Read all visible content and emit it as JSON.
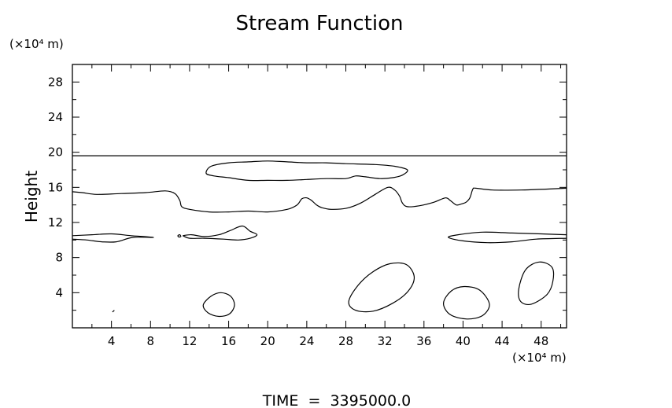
{
  "chart_data": {
    "type": "contour",
    "title": "Stream Function",
    "ylabel": "Height",
    "y_unit": "(×10⁴ m)",
    "x_unit": "(×10⁴ m)",
    "footer": "TIME  =  3395000.0",
    "xlim": [
      0,
      50.6
    ],
    "ylim": [
      0,
      30
    ],
    "x_ticks": [
      4,
      8,
      12,
      16,
      20,
      24,
      28,
      32,
      36,
      40,
      44,
      48
    ],
    "y_ticks": [
      4,
      8,
      12,
      16,
      20,
      24,
      28
    ],
    "x_minor_step": 2,
    "y_minor_step": 2,
    "contours": [
      {
        "name": "top-boundary",
        "closed": false,
        "points": [
          [
            0,
            19.6
          ],
          [
            50.6,
            19.6
          ]
        ]
      },
      {
        "name": "upper-band",
        "closed": false,
        "points": [
          [
            0,
            15.5
          ],
          [
            1,
            15.4
          ],
          [
            2.5,
            15.2
          ],
          [
            5,
            15.3
          ],
          [
            7.5,
            15.4
          ],
          [
            9.5,
            15.6
          ],
          [
            10.5,
            15.3
          ],
          [
            11,
            14.5
          ],
          [
            11.2,
            13.8
          ],
          [
            12,
            13.5
          ],
          [
            14,
            13.2
          ],
          [
            16,
            13.2
          ],
          [
            18,
            13.3
          ],
          [
            20,
            13.2
          ],
          [
            22,
            13.5
          ],
          [
            23,
            14
          ],
          [
            23.5,
            14.7
          ],
          [
            24,
            14.8
          ],
          [
            24.5,
            14.5
          ],
          [
            25,
            14
          ],
          [
            25.5,
            13.7
          ],
          [
            26.5,
            13.5
          ],
          [
            28,
            13.6
          ],
          [
            29.5,
            14.2
          ],
          [
            31,
            15.2
          ],
          [
            32.3,
            16
          ],
          [
            33,
            15.7
          ],
          [
            33.5,
            15
          ],
          [
            33.8,
            14.2
          ],
          [
            34.3,
            13.8
          ],
          [
            35.5,
            13.9
          ],
          [
            37,
            14.3
          ],
          [
            38.2,
            14.8
          ],
          [
            38.7,
            14.5
          ],
          [
            39.3,
            14
          ],
          [
            39.8,
            14.1
          ],
          [
            40.3,
            14.3
          ],
          [
            40.7,
            14.8
          ],
          [
            41,
            15.8
          ],
          [
            41.3,
            15.9
          ],
          [
            43,
            15.7
          ],
          [
            46,
            15.7
          ],
          [
            48.5,
            15.8
          ],
          [
            50.6,
            15.9
          ]
        ]
      },
      {
        "name": "upper-lens",
        "closed": true,
        "points": [
          [
            13.7,
            17.6
          ],
          [
            14.2,
            18.4
          ],
          [
            16,
            18.8
          ],
          [
            18,
            18.9
          ],
          [
            20,
            19.0
          ],
          [
            22,
            18.9
          ],
          [
            24,
            18.8
          ],
          [
            26,
            18.8
          ],
          [
            28,
            18.7
          ],
          [
            31,
            18.6
          ],
          [
            33,
            18.4
          ],
          [
            34.3,
            18.0
          ],
          [
            33.8,
            17.4
          ],
          [
            32.8,
            17.1
          ],
          [
            31.5,
            17.0
          ],
          [
            30,
            17.2
          ],
          [
            29,
            17.3
          ],
          [
            28,
            17.0
          ],
          [
            26,
            17.0
          ],
          [
            24,
            16.9
          ],
          [
            22,
            16.8
          ],
          [
            20,
            16.8
          ],
          [
            18,
            16.8
          ],
          [
            16,
            17.1
          ],
          [
            14.5,
            17.3
          ]
        ]
      },
      {
        "name": "left-tongue",
        "closed": false,
        "points": [
          [
            0,
            10.5
          ],
          [
            2,
            10.6
          ],
          [
            4,
            10.7
          ],
          [
            6,
            10.5
          ],
          [
            8.3,
            10.3
          ],
          [
            6.2,
            10.3
          ],
          [
            4.5,
            9.8
          ],
          [
            3,
            9.8
          ],
          [
            1.5,
            10.0
          ],
          [
            0,
            10.1
          ]
        ]
      },
      {
        "name": "center-blob",
        "closed": false,
        "points": [
          [
            11.3,
            10.5
          ],
          [
            12.2,
            10.6
          ],
          [
            13.5,
            10.4
          ],
          [
            15,
            10.6
          ],
          [
            16.2,
            11.1
          ],
          [
            17.4,
            11.6
          ],
          [
            18.2,
            11.0
          ],
          [
            18.9,
            10.6
          ],
          [
            18.2,
            10.2
          ],
          [
            17,
            10.0
          ],
          [
            15.5,
            10.1
          ],
          [
            13.5,
            10.2
          ],
          [
            12,
            10.2
          ],
          [
            11.3,
            10.5
          ]
        ]
      },
      {
        "name": "center-dot",
        "closed": true,
        "points": [
          [
            10.8,
            10.5
          ],
          [
            11.0,
            10.6
          ],
          [
            11.1,
            10.4
          ],
          [
            10.9,
            10.35
          ]
        ]
      },
      {
        "name": "right-tongue",
        "closed": false,
        "points": [
          [
            50.6,
            10.6
          ],
          [
            48,
            10.7
          ],
          [
            45,
            10.8
          ],
          [
            42,
            10.9
          ],
          [
            39.5,
            10.6
          ],
          [
            38.5,
            10.3
          ],
          [
            40,
            9.9
          ],
          [
            42.5,
            9.7
          ],
          [
            45,
            9.8
          ],
          [
            47.5,
            10.1
          ],
          [
            50.6,
            10.2
          ]
        ]
      },
      {
        "name": "bottom-cell-left",
        "closed": true,
        "points": [
          [
            13.4,
            2.6
          ],
          [
            14.2,
            3.6
          ],
          [
            15.2,
            4.0
          ],
          [
            16.2,
            3.6
          ],
          [
            16.6,
            2.6
          ],
          [
            16.1,
            1.6
          ],
          [
            15,
            1.3
          ],
          [
            13.9,
            1.7
          ]
        ]
      },
      {
        "name": "bottom-cell-middle",
        "closed": true,
        "points": [
          [
            28.3,
            3.0
          ],
          [
            29.3,
            4.9
          ],
          [
            30.8,
            6.4
          ],
          [
            32.5,
            7.3
          ],
          [
            34.2,
            7.2
          ],
          [
            35,
            5.8
          ],
          [
            34.4,
            4.2
          ],
          [
            32.8,
            2.8
          ],
          [
            30.8,
            1.9
          ],
          [
            29.0,
            2.0
          ]
        ]
      },
      {
        "name": "bottom-cell-right",
        "closed": true,
        "points": [
          [
            38.0,
            2.8
          ],
          [
            38.8,
            4.2
          ],
          [
            40.1,
            4.7
          ],
          [
            41.7,
            4.3
          ],
          [
            42.7,
            2.7
          ],
          [
            42.0,
            1.4
          ],
          [
            40.4,
            1.0
          ],
          [
            38.7,
            1.5
          ]
        ]
      },
      {
        "name": "bottom-cell-far-right",
        "closed": true,
        "points": [
          [
            45.7,
            4.4
          ],
          [
            46.4,
            6.6
          ],
          [
            47.8,
            7.5
          ],
          [
            49.1,
            6.9
          ],
          [
            49.2,
            5.3
          ],
          [
            48.6,
            3.8
          ],
          [
            47.0,
            2.7
          ],
          [
            45.9,
            3.0
          ]
        ]
      },
      {
        "name": "speck",
        "closed": false,
        "points": [
          [
            4.1,
            1.8
          ],
          [
            4.3,
            2.0
          ]
        ]
      }
    ]
  }
}
